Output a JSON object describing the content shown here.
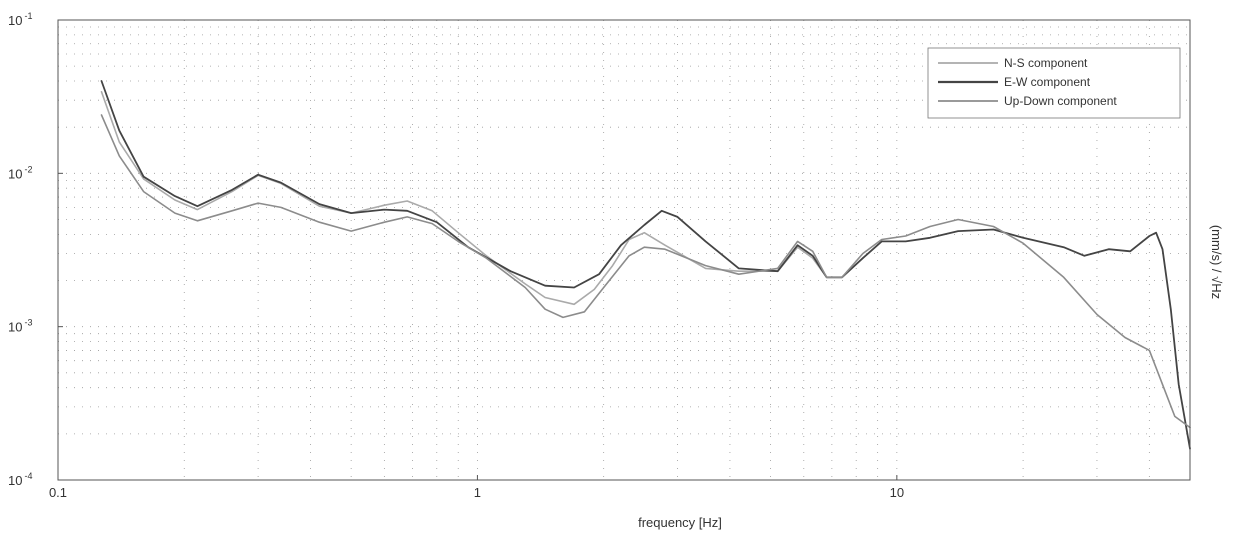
{
  "chart_data": {
    "type": "line",
    "title": "",
    "xlabel": "frequency [Hz]",
    "ylabel": "(mm/s) / √Hz",
    "xscale": "log",
    "yscale": "log",
    "xlim": [
      0.1,
      50
    ],
    "ylim": [
      0.0001,
      0.1
    ],
    "grid": true,
    "legend_position": "top-right",
    "x_ticks": [
      {
        "value": 0.1,
        "label": "0.1"
      },
      {
        "value": 1,
        "label": "1"
      },
      {
        "value": 10,
        "label": "10"
      }
    ],
    "y_ticks": [
      {
        "value": 0.1,
        "base": "10",
        "exp": "-1"
      },
      {
        "value": 0.01,
        "base": "10",
        "exp": "-2"
      },
      {
        "value": 0.001,
        "base": "10",
        "exp": "-3"
      },
      {
        "value": 0.0001,
        "base": "10",
        "exp": "-4"
      }
    ],
    "series": [
      {
        "name": "N-S component",
        "color": "#aaaaaa",
        "points": [
          [
            0.127,
            0.034
          ],
          [
            0.14,
            0.016
          ],
          [
            0.16,
            0.0092
          ],
          [
            0.19,
            0.0067
          ],
          [
            0.215,
            0.0058
          ],
          [
            0.26,
            0.0076
          ],
          [
            0.3,
            0.0097
          ],
          [
            0.34,
            0.0086
          ],
          [
            0.42,
            0.0061
          ],
          [
            0.5,
            0.0055
          ],
          [
            0.6,
            0.0062
          ],
          [
            0.68,
            0.0066
          ],
          [
            0.78,
            0.0057
          ],
          [
            0.9,
            0.0041
          ],
          [
            1.05,
            0.0029
          ],
          [
            1.3,
            0.0019
          ],
          [
            1.45,
            0.00155
          ],
          [
            1.7,
            0.0014
          ],
          [
            1.9,
            0.00175
          ],
          [
            2.1,
            0.0025
          ],
          [
            2.3,
            0.0037
          ],
          [
            2.5,
            0.0041
          ],
          [
            2.8,
            0.0034
          ],
          [
            3.5,
            0.0024
          ],
          [
            4.2,
            0.0023
          ],
          [
            5.2,
            0.0023
          ],
          [
            5.8,
            0.0033
          ],
          [
            6.3,
            0.0028
          ],
          [
            6.8,
            0.0021
          ]
        ]
      },
      {
        "name": "E-W component",
        "color": "#444444",
        "points": [
          [
            0.127,
            0.04
          ],
          [
            0.14,
            0.019
          ],
          [
            0.16,
            0.0095
          ],
          [
            0.19,
            0.0071
          ],
          [
            0.215,
            0.0061
          ],
          [
            0.26,
            0.0078
          ],
          [
            0.3,
            0.0098
          ],
          [
            0.34,
            0.0087
          ],
          [
            0.42,
            0.0063
          ],
          [
            0.5,
            0.0055
          ],
          [
            0.6,
            0.0058
          ],
          [
            0.68,
            0.0057
          ],
          [
            0.8,
            0.0048
          ],
          [
            0.95,
            0.0033
          ],
          [
            1.2,
            0.0023
          ],
          [
            1.45,
            0.00185
          ],
          [
            1.7,
            0.0018
          ],
          [
            1.95,
            0.0022
          ],
          [
            2.2,
            0.0034
          ],
          [
            2.5,
            0.0046
          ],
          [
            2.75,
            0.0057
          ],
          [
            3.0,
            0.0052
          ],
          [
            3.5,
            0.0036
          ],
          [
            4.2,
            0.0024
          ],
          [
            5.2,
            0.0023
          ],
          [
            5.8,
            0.0034
          ],
          [
            6.3,
            0.0029
          ],
          [
            6.8,
            0.0021
          ],
          [
            7.4,
            0.0021
          ],
          [
            8.3,
            0.0028
          ],
          [
            9.2,
            0.0036
          ],
          [
            10.5,
            0.0036
          ],
          [
            12,
            0.0038
          ],
          [
            14,
            0.0042
          ],
          [
            17,
            0.0043
          ],
          [
            20,
            0.0038
          ],
          [
            25,
            0.0033
          ],
          [
            28,
            0.0029
          ],
          [
            32,
            0.0032
          ],
          [
            36,
            0.0031
          ],
          [
            40,
            0.0039
          ],
          [
            41.5,
            0.0041
          ],
          [
            43,
            0.0032
          ],
          [
            45,
            0.0013
          ],
          [
            47,
            0.00042
          ],
          [
            50,
            0.00016
          ]
        ]
      },
      {
        "name": "Up-Down component",
        "color": "#8c8c8c",
        "points": [
          [
            0.127,
            0.024
          ],
          [
            0.14,
            0.013
          ],
          [
            0.16,
            0.0076
          ],
          [
            0.19,
            0.0055
          ],
          [
            0.215,
            0.0049
          ],
          [
            0.26,
            0.0057
          ],
          [
            0.3,
            0.0064
          ],
          [
            0.34,
            0.006
          ],
          [
            0.42,
            0.0048
          ],
          [
            0.5,
            0.0042
          ],
          [
            0.6,
            0.0048
          ],
          [
            0.68,
            0.0052
          ],
          [
            0.78,
            0.0047
          ],
          [
            0.9,
            0.0036
          ],
          [
            1.05,
            0.0028
          ],
          [
            1.3,
            0.0018
          ],
          [
            1.45,
            0.0013
          ],
          [
            1.6,
            0.00115
          ],
          [
            1.8,
            0.00125
          ],
          [
            2.0,
            0.0018
          ],
          [
            2.3,
            0.0029
          ],
          [
            2.5,
            0.0033
          ],
          [
            2.8,
            0.0032
          ],
          [
            3.5,
            0.0025
          ],
          [
            4.2,
            0.0022
          ],
          [
            5.2,
            0.0024
          ],
          [
            5.8,
            0.0036
          ],
          [
            6.3,
            0.0031
          ],
          [
            6.8,
            0.0021
          ],
          [
            7.4,
            0.0021
          ],
          [
            8.3,
            0.003
          ],
          [
            9.2,
            0.0037
          ],
          [
            10.5,
            0.0039
          ],
          [
            12,
            0.0045
          ],
          [
            14,
            0.005
          ],
          [
            17,
            0.0045
          ],
          [
            20,
            0.0035
          ],
          [
            25,
            0.0021
          ],
          [
            30,
            0.0012
          ],
          [
            35,
            0.00085
          ],
          [
            40,
            0.0007
          ],
          [
            43,
            0.00042
          ],
          [
            46,
            0.00026
          ],
          [
            50,
            0.00022
          ]
        ]
      }
    ]
  },
  "colors": {
    "frame": "#555555",
    "grid": "#9a9a9a",
    "text": "#333333",
    "background": "#ffffff"
  }
}
